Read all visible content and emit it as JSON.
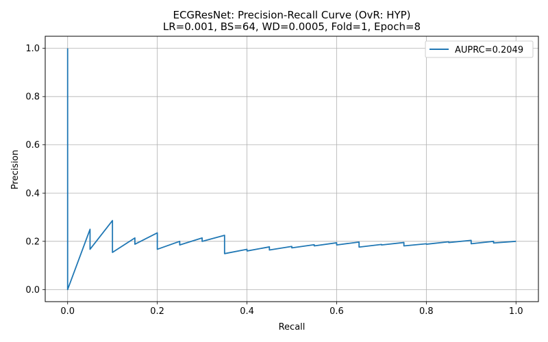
{
  "chart_data": {
    "type": "line",
    "title": "ECGResNet: Precision-Recall Curve (OvR: HYP)",
    "subtitle": "LR=0.001, BS=64, WD=0.0005, Fold=1, Epoch=8",
    "xlabel": "Recall",
    "ylabel": "Precision",
    "xlim": [
      -0.05,
      1.05
    ],
    "ylim": [
      -0.05,
      1.05
    ],
    "xticks": [
      "0.0",
      "0.2",
      "0.4",
      "0.6",
      "0.8",
      "1.0"
    ],
    "yticks": [
      "0.0",
      "0.2",
      "0.4",
      "0.6",
      "0.8",
      "1.0"
    ],
    "grid": true,
    "legend_position": "top-right",
    "color": "#1f77b4",
    "series": [
      {
        "name": "AUPRC=0.2049",
        "x": [
          0.0,
          0.0,
          0.05,
          0.05,
          0.1,
          0.1,
          0.15,
          0.15,
          0.2,
          0.2,
          0.25,
          0.25,
          0.3,
          0.3,
          0.35,
          0.35,
          0.4,
          0.4,
          0.45,
          0.45,
          0.5,
          0.5,
          0.55,
          0.55,
          0.6,
          0.6,
          0.65,
          0.65,
          0.7,
          0.7,
          0.75,
          0.75,
          0.8,
          0.8,
          0.85,
          0.85,
          0.9,
          0.9,
          0.95,
          0.95,
          1.0
        ],
        "y": [
          1.0,
          0.0,
          0.25,
          0.167,
          0.286,
          0.154,
          0.214,
          0.188,
          0.235,
          0.167,
          0.2,
          0.185,
          0.214,
          0.2,
          0.225,
          0.149,
          0.167,
          0.16,
          0.177,
          0.164,
          0.179,
          0.173,
          0.186,
          0.181,
          0.194,
          0.185,
          0.197,
          0.176,
          0.187,
          0.185,
          0.195,
          0.181,
          0.19,
          0.188,
          0.198,
          0.195,
          0.204,
          0.19,
          0.2,
          0.193,
          0.2
        ]
      }
    ]
  }
}
